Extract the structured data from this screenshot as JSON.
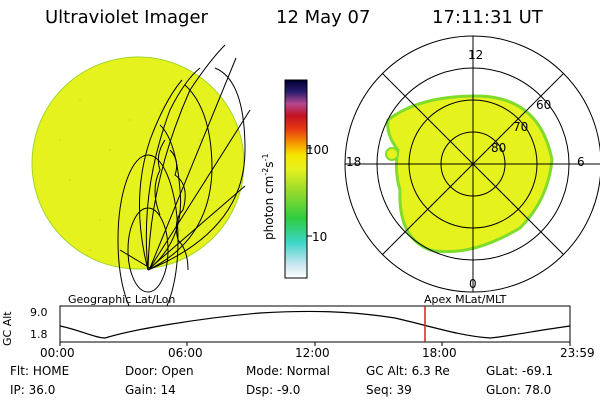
{
  "header": {
    "title": "Ultraviolet Imager",
    "date": "12 May 07",
    "time": "17:11:31 UT"
  },
  "colorbar": {
    "label": "photon cm",
    "label_sup1": "-2",
    "label_s": "s",
    "label_sup2": "-1",
    "ticks": [
      "100",
      "10"
    ]
  },
  "polar": {
    "lat_labels": [
      "60",
      "70",
      "80"
    ],
    "mlt_labels": {
      "top": "12",
      "left": "18",
      "right": "6",
      "bottom": "0"
    }
  },
  "timeline": {
    "left_caption": "Geographic Lat/Lon",
    "right_caption": "Apex MLat/MLT",
    "axis_title": "GC Alt",
    "y_ticks": [
      "9.0",
      "1.8"
    ],
    "x_ticks": [
      "00:00",
      "06:00",
      "12:00",
      "18:00",
      "23:59"
    ],
    "current_time_marker": "17:11:31"
  },
  "status": {
    "row1": [
      {
        "label": "Flt:",
        "value": "HOME"
      },
      {
        "label": "Door:",
        "value": "Open"
      },
      {
        "label": "Mode:",
        "value": "Normal"
      },
      {
        "label": "GC Alt:",
        "value": "6.3 Re"
      },
      {
        "label": "GLat:",
        "value": "-69.1"
      }
    ],
    "row2": [
      {
        "label": "IP:",
        "value": "36.0"
      },
      {
        "label": "Gain:",
        "value": "14"
      },
      {
        "label": "Dsp:",
        "value": "-9.0"
      },
      {
        "label": "Seq:",
        "value": "39"
      },
      {
        "label": "GLon:",
        "value": "78.0"
      }
    ]
  },
  "colors": {
    "emission": "#e6f21e",
    "emission_edge": "#7fdc2a",
    "marker": "#d42020"
  }
}
